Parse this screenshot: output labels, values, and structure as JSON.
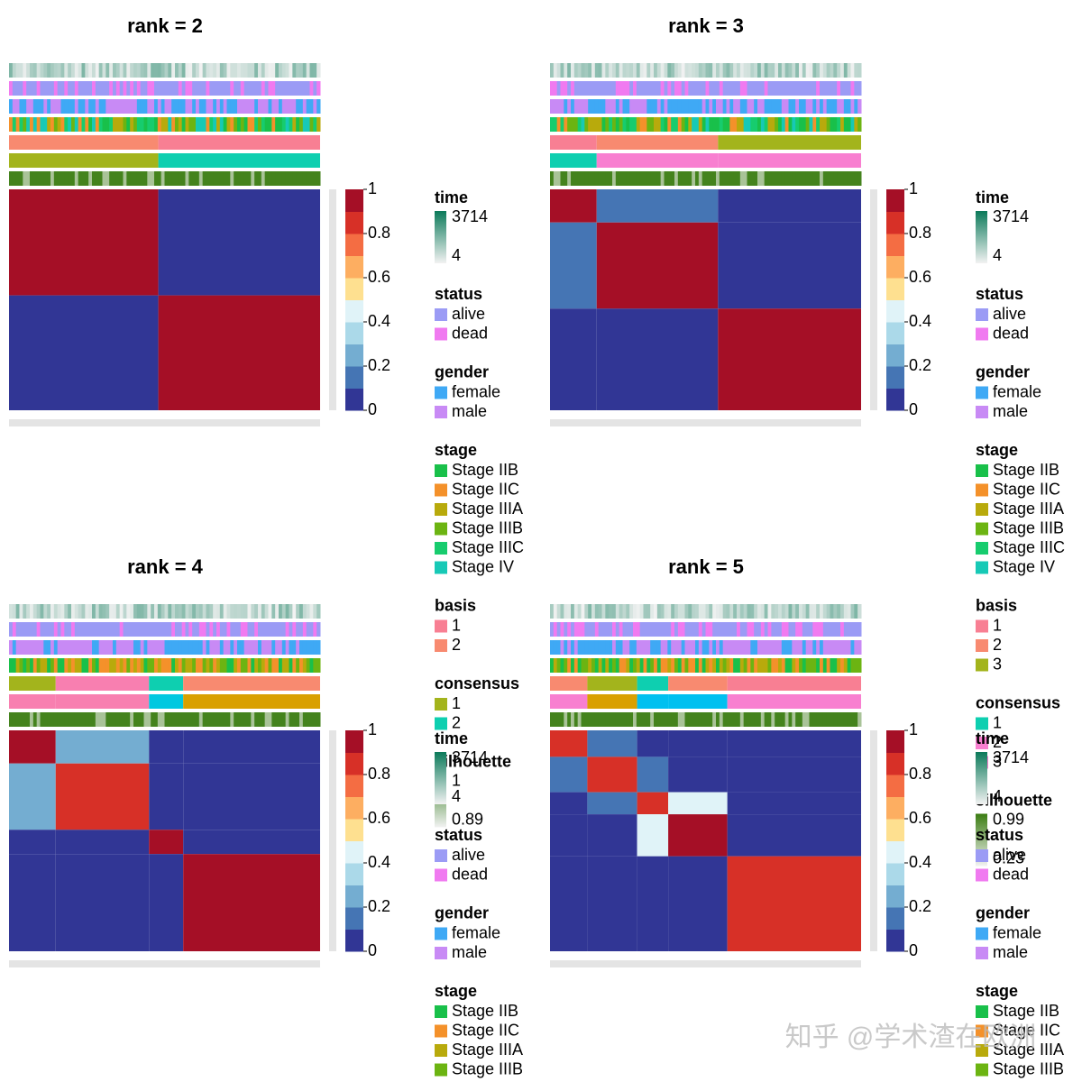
{
  "chart_data": [
    {
      "type": "heatmap",
      "title": "rank =  2",
      "cluster_sizes": [
        48,
        52
      ],
      "values": [
        [
          0.98,
          0.02
        ],
        [
          0.02,
          0.98
        ]
      ],
      "colors": [
        "#313695",
        "#4575b4",
        "#74add1",
        "#abd9e9",
        "#e0f3f8",
        "#f0f7d5",
        "#fee090",
        "#fdae61",
        "#f46d43",
        "#d73027",
        "#a50f26"
      ],
      "colorbar_lim": [
        0,
        1
      ],
      "colorbar_ticks": [
        0,
        0.2,
        0.4,
        0.6,
        0.8,
        1
      ],
      "basis_colors": [
        "#f88a70",
        "#f87f93"
      ],
      "consensus_colors": [
        "#a3b41c",
        "#0ecfb0"
      ],
      "legend": [
        {
          "title": "time",
          "labels": [
            3714,
            4
          ],
          "colors": [
            "#0b7a5a",
            "#f2f2f2"
          ]
        },
        {
          "title": "status",
          "items": [
            {
              "label": "alive",
              "color": "#9b9bf5"
            },
            {
              "label": "dead",
              "color": "#f07af0"
            }
          ]
        },
        {
          "title": "gender",
          "items": [
            {
              "label": "female",
              "color": "#3fa9f5"
            },
            {
              "label": "male",
              "color": "#c88af5"
            }
          ]
        },
        {
          "title": "stage",
          "items": [
            {
              "label": "Stage IIB",
              "color": "#19c04a"
            },
            {
              "label": "Stage IIC",
              "color": "#f4912a"
            },
            {
              "label": "Stage IIIA",
              "color": "#b8aa0c"
            },
            {
              "label": "Stage IIIB",
              "color": "#6cb412"
            },
            {
              "label": "Stage IIIC",
              "color": "#17cc6e"
            },
            {
              "label": "Stage IV",
              "color": "#17c9b6"
            }
          ]
        },
        {
          "title": "basis",
          "items": [
            {
              "label": "1",
              "color": "#f87f93"
            },
            {
              "label": "2",
              "color": "#f88a70"
            }
          ]
        },
        {
          "title": "consensus",
          "items": [
            {
              "label": "1",
              "color": "#a3b41c"
            },
            {
              "label": "2",
              "color": "#0ecfb0"
            }
          ]
        },
        {
          "title": "silhouette",
          "labels": [
            1,
            0.89
          ],
          "colors": [
            "#2f7a1a",
            "#f2f2f2"
          ]
        }
      ]
    },
    {
      "type": "heatmap",
      "title": "rank =  3",
      "cluster_sizes": [
        15,
        39,
        46
      ],
      "values": [
        [
          0.95,
          0.05,
          0.02
        ],
        [
          0.05,
          0.98,
          0.02
        ],
        [
          0.02,
          0.02,
          0.97
        ]
      ],
      "colors": [
        "#313695",
        "#4575b4",
        "#74add1",
        "#abd9e9",
        "#e0f3f8",
        "#f0f7d5",
        "#fee090",
        "#fdae61",
        "#f46d43",
        "#d73027",
        "#a50f26"
      ],
      "colorbar_lim": [
        0,
        1
      ],
      "colorbar_ticks": [
        0,
        0.2,
        0.4,
        0.6,
        0.8,
        1
      ],
      "basis_colors": [
        "#f87f93",
        "#f88a70",
        "#a3b41c"
      ],
      "consensus_colors": [
        "#0ecfb0",
        "#f87fd0",
        "#f87fd0"
      ],
      "legend": [
        {
          "title": "time",
          "labels": [
            3714,
            4
          ],
          "colors": [
            "#0b7a5a",
            "#f2f2f2"
          ]
        },
        {
          "title": "status",
          "items": [
            {
              "label": "alive",
              "color": "#9b9bf5"
            },
            {
              "label": "dead",
              "color": "#f07af0"
            }
          ]
        },
        {
          "title": "gender",
          "items": [
            {
              "label": "female",
              "color": "#3fa9f5"
            },
            {
              "label": "male",
              "color": "#c88af5"
            }
          ]
        },
        {
          "title": "stage",
          "items": [
            {
              "label": "Stage IIB",
              "color": "#19c04a"
            },
            {
              "label": "Stage IIC",
              "color": "#f4912a"
            },
            {
              "label": "Stage IIIA",
              "color": "#b8aa0c"
            },
            {
              "label": "Stage IIIB",
              "color": "#6cb412"
            },
            {
              "label": "Stage IIIC",
              "color": "#17cc6e"
            },
            {
              "label": "Stage IV",
              "color": "#17c9b6"
            }
          ]
        },
        {
          "title": "basis",
          "items": [
            {
              "label": "1",
              "color": "#f87f93"
            },
            {
              "label": "2",
              "color": "#f88a70"
            },
            {
              "label": "3",
              "color": "#a3b41c"
            }
          ]
        },
        {
          "title": "consensus",
          "items": [
            {
              "label": "1",
              "color": "#0ecfb0"
            },
            {
              "label": "2",
              "color": "#f87fd0"
            },
            {
              "label": "3",
              "color": "#f87fd0"
            }
          ]
        },
        {
          "title": "silhouette",
          "labels": [
            0.99,
            0.23
          ],
          "colors": [
            "#3b7d12",
            "#f2f2f2"
          ]
        }
      ]
    },
    {
      "type": "heatmap",
      "title": "rank =  4",
      "cluster_sizes": [
        15,
        30,
        11,
        44
      ],
      "values": [
        [
          0.95,
          0.2,
          0.02,
          0.02
        ],
        [
          0.2,
          0.92,
          0.02,
          0.02
        ],
        [
          0.02,
          0.02,
          0.95,
          0.02
        ],
        [
          0.02,
          0.02,
          0.02,
          0.97
        ]
      ],
      "colors": [
        "#313695",
        "#4575b4",
        "#74add1",
        "#abd9e9",
        "#e0f3f8",
        "#f0f7d5",
        "#fee090",
        "#fdae61",
        "#f46d43",
        "#d73027",
        "#a50f26"
      ],
      "colorbar_lim": [
        0,
        1
      ],
      "colorbar_ticks": [
        0,
        0.2,
        0.4,
        0.6,
        0.8,
        1
      ],
      "basis_colors": [
        "#a3b41c",
        "#f87fb0",
        "#0ecfb0",
        "#f88a70"
      ],
      "consensus_colors": [
        "#f87fb0",
        "#f87fb0",
        "#00c8e0",
        "#d9a000"
      ],
      "legend": [
        {
          "title": "time",
          "labels": [
            3714,
            4
          ],
          "colors": [
            "#0b7a5a",
            "#f2f2f2"
          ]
        },
        {
          "title": "status",
          "items": [
            {
              "label": "alive",
              "color": "#9b9bf5"
            },
            {
              "label": "dead",
              "color": "#f07af0"
            }
          ]
        },
        {
          "title": "gender",
          "items": [
            {
              "label": "female",
              "color": "#3fa9f5"
            },
            {
              "label": "male",
              "color": "#c88af5"
            }
          ]
        },
        {
          "title": "stage",
          "items": [
            {
              "label": "Stage IIB",
              "color": "#19c04a"
            },
            {
              "label": "Stage IIC",
              "color": "#f4912a"
            },
            {
              "label": "Stage IIIA",
              "color": "#b8aa0c"
            },
            {
              "label": "Stage IIIB",
              "color": "#6cb412"
            }
          ]
        }
      ]
    },
    {
      "type": "heatmap",
      "title": "rank =  5",
      "cluster_sizes": [
        12,
        16,
        10,
        19,
        43
      ],
      "values": [
        [
          0.9,
          0.05,
          0.02,
          0.02,
          0.02
        ],
        [
          0.05,
          0.85,
          0.05,
          0.02,
          0.02
        ],
        [
          0.02,
          0.05,
          0.9,
          0.4,
          0.02
        ],
        [
          0.02,
          0.02,
          0.4,
          0.95,
          0.02
        ],
        [
          0.02,
          0.02,
          0.02,
          0.02,
          0.9
        ]
      ],
      "colors": [
        "#313695",
        "#4575b4",
        "#74add1",
        "#abd9e9",
        "#e0f3f8",
        "#f0f7d5",
        "#fee090",
        "#fdae61",
        "#f46d43",
        "#d73027",
        "#a50f26"
      ],
      "colorbar_lim": [
        0,
        1
      ],
      "colorbar_ticks": [
        0,
        0.2,
        0.4,
        0.6,
        0.8,
        1
      ],
      "basis_colors": [
        "#f88a70",
        "#a3b41c",
        "#0ecfb0",
        "#f88a70",
        "#f87f93"
      ],
      "consensus_colors": [
        "#f87fd0",
        "#d9a000",
        "#00c0f0",
        "#00c0f0",
        "#f87fd0"
      ],
      "legend": [
        {
          "title": "time",
          "labels": [
            3714,
            4
          ],
          "colors": [
            "#0b7a5a",
            "#f2f2f2"
          ]
        },
        {
          "title": "status",
          "items": [
            {
              "label": "alive",
              "color": "#9b9bf5"
            },
            {
              "label": "dead",
              "color": "#f07af0"
            }
          ]
        },
        {
          "title": "gender",
          "items": [
            {
              "label": "female",
              "color": "#3fa9f5"
            },
            {
              "label": "male",
              "color": "#c88af5"
            }
          ]
        },
        {
          "title": "stage",
          "items": [
            {
              "label": "Stage IIB",
              "color": "#19c04a"
            },
            {
              "label": "Stage IIC",
              "color": "#f4912a"
            },
            {
              "label": "Stage IIIA",
              "color": "#b8aa0c"
            },
            {
              "label": "Stage IIIB",
              "color": "#6cb412"
            }
          ]
        }
      ]
    }
  ],
  "watermark": "知乎 @学术渣在欧洲"
}
